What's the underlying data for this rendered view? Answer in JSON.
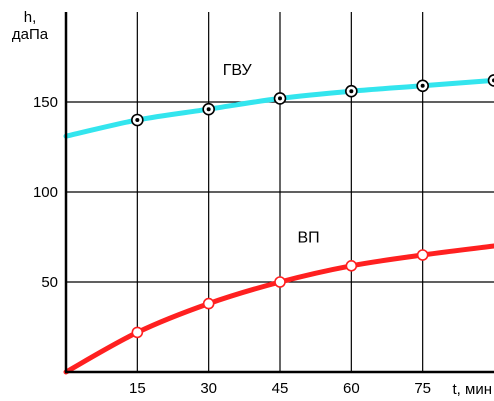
{
  "chart_data": {
    "type": "line",
    "ylabel": "h,\nдаПа",
    "xlabel": "t, мин",
    "x_ticks": [
      15,
      30,
      45,
      60,
      75
    ],
    "y_ticks": [
      50,
      100,
      150
    ],
    "xlim": [
      0,
      90
    ],
    "ylim": [
      0,
      200
    ],
    "grid": true,
    "series": [
      {
        "name": "ГВУ",
        "color": "#33e5ee",
        "marker": "dot-ring",
        "curve": [
          [
            0,
            131
          ],
          [
            15,
            140
          ],
          [
            30,
            146
          ],
          [
            45,
            152
          ],
          [
            60,
            156
          ],
          [
            75,
            159
          ],
          [
            90,
            162
          ]
        ],
        "points": [
          [
            15,
            140
          ],
          [
            30,
            146
          ],
          [
            45,
            152
          ],
          [
            60,
            156
          ],
          [
            75,
            159
          ],
          [
            90,
            162
          ]
        ]
      },
      {
        "name": "ВП",
        "color": "#ff2020",
        "marker": "open-circle",
        "curve": [
          [
            0,
            0
          ],
          [
            15,
            22
          ],
          [
            30,
            38
          ],
          [
            45,
            50
          ],
          [
            60,
            59
          ],
          [
            75,
            65
          ],
          [
            90,
            70
          ]
        ],
        "points": [
          [
            15,
            22
          ],
          [
            30,
            38
          ],
          [
            45,
            50
          ],
          [
            60,
            59
          ],
          [
            75,
            65
          ]
        ]
      }
    ],
    "annotations": [
      {
        "text": "ГВУ",
        "x": 36,
        "y": 165
      },
      {
        "text": "ВП",
        "x": 51,
        "y": 72
      }
    ]
  }
}
